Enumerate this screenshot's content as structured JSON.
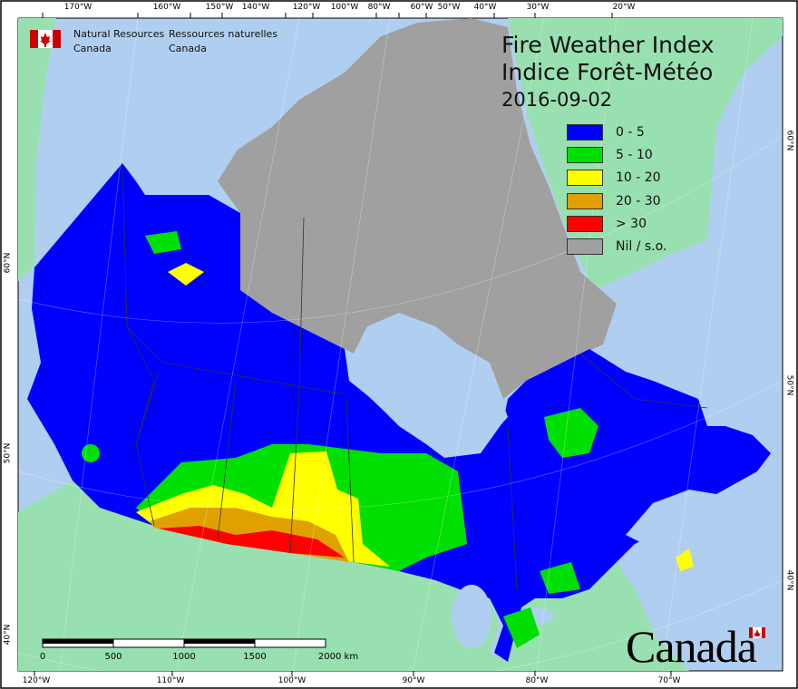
{
  "map": {
    "title_en": "Fire Weather Index",
    "title_fr": "Indice Forêt-Météo",
    "date": "2016-09-02",
    "agency": {
      "en_line1": "Natural Resources",
      "en_line2": "Canada",
      "fr_line1": "Ressources naturelles",
      "fr_line2": "Canada"
    },
    "wordmark": "Canada",
    "legend": [
      {
        "label": "0 - 5",
        "color": "#0000ff"
      },
      {
        "label": "5 - 10",
        "color": "#00e000"
      },
      {
        "label": "10 - 20",
        "color": "#ffff00"
      },
      {
        "label": "20 - 30",
        "color": "#e0a000"
      },
      {
        "label": "> 30",
        "color": "#ff0000"
      },
      {
        "label": "Nil / s.o.",
        "color": "#a0a0a0"
      }
    ],
    "top_longitudes": [
      "170°W",
      "160°W",
      "150°W",
      "140°W",
      "120°W",
      "100°W",
      "80°W",
      "60°W",
      "50°W",
      "40°W",
      "30°W",
      "20°W"
    ],
    "bottom_longitudes": [
      "120°W",
      "110°W",
      "100°W",
      "90°W",
      "80°W",
      "70°W"
    ],
    "left_latitudes": [
      "60°N",
      "50°N",
      "40°N"
    ],
    "right_latitudes": [
      "60°N",
      "50°N",
      "40°N"
    ],
    "scale_labels": [
      "0",
      "500",
      "1000",
      "1500",
      "2000 km"
    ],
    "colors": {
      "water": "#b0cff0",
      "foreign_land": "#98e0b0",
      "no_data": "#a0a0a0"
    }
  }
}
